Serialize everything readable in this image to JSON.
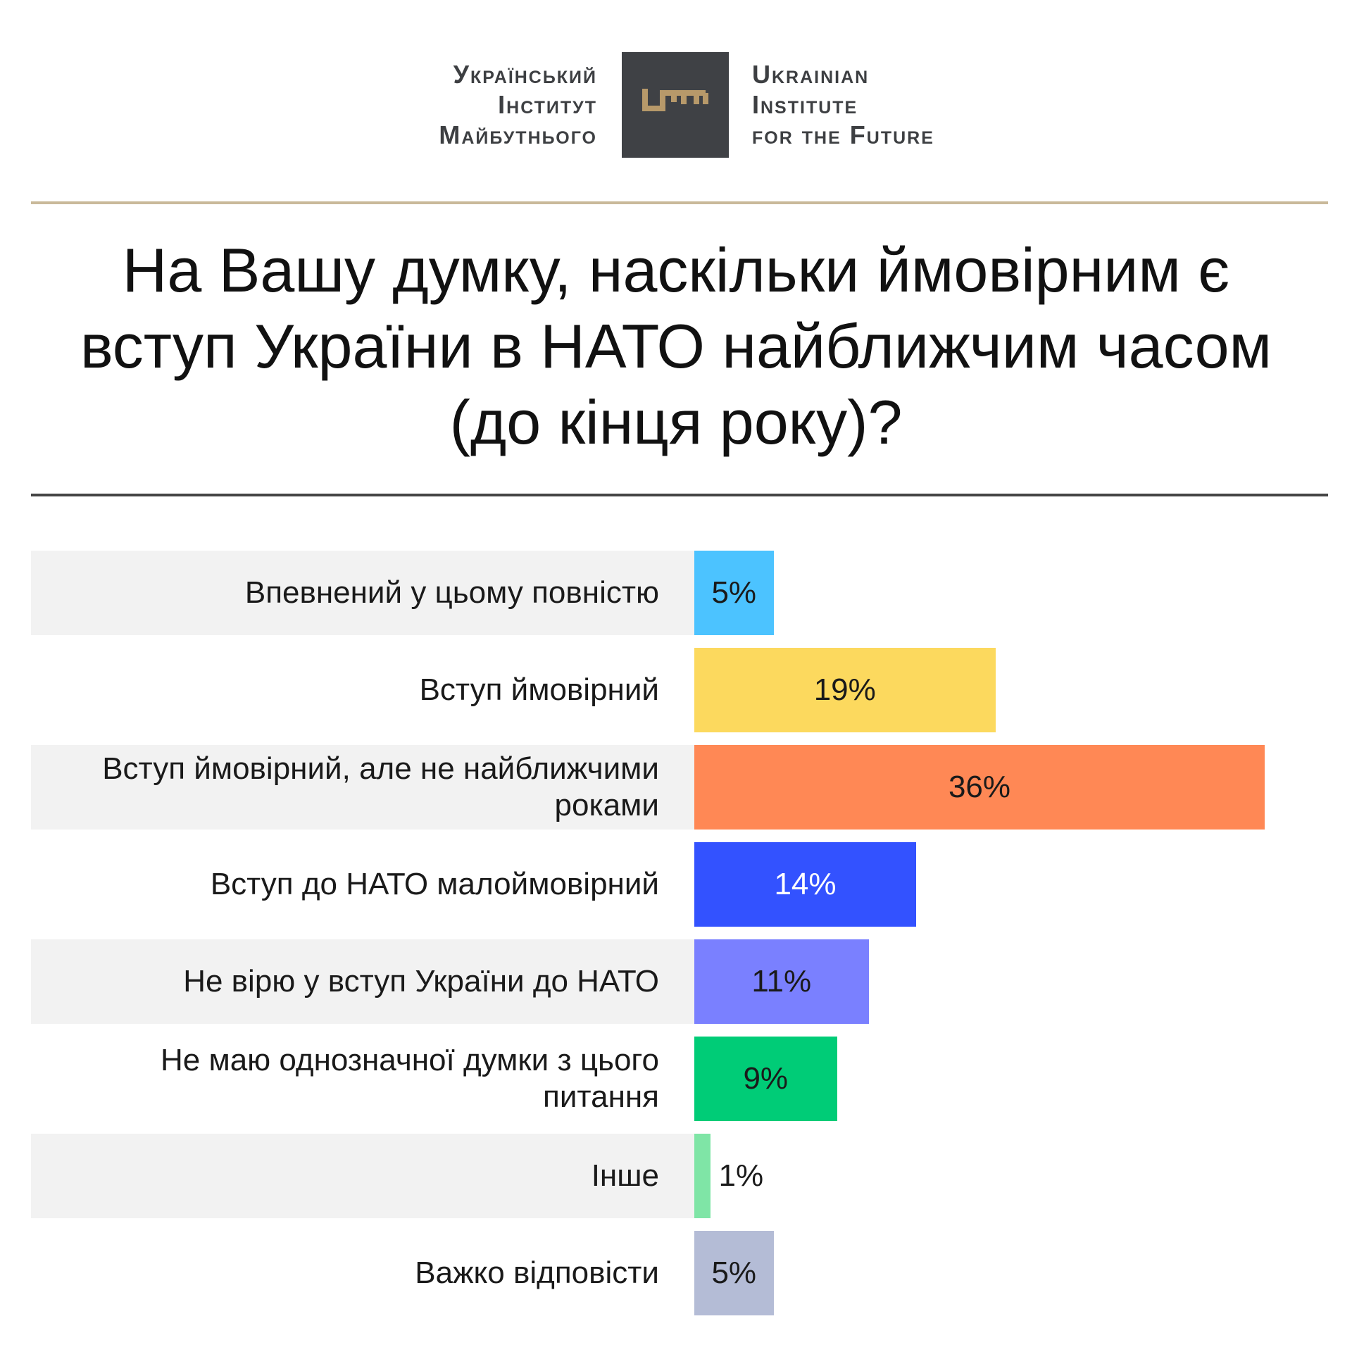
{
  "header": {
    "brand_ua": [
      "Український",
      "Інститут",
      "Майбутнього"
    ],
    "brand_en": [
      "Ukrainian",
      "Institute",
      "for the Future"
    ]
  },
  "colors": {
    "logo_box": "#3f4145",
    "logo_key": "#b7996a",
    "rule_top": "#c9b99a",
    "rule_mid": "#444444",
    "row_band": "#f2f2f2"
  },
  "chart_data": {
    "type": "bar",
    "orientation": "horizontal",
    "title": "На Вашу думку, наскільки ймовірним є вступ України в НАТО найближчим часом (до кінця року)?",
    "categories": [
      "Впевнений у цьому повністю",
      "Вступ ймовірний",
      "Вступ ймовірний, але не найближчими роками",
      "Вступ до НАТО малоймовірний",
      "Не вірю у вступ України до НАТО",
      "Не маю однозначної думки з цього питання",
      "Інше",
      "Важко відповісти"
    ],
    "values": [
      5,
      19,
      36,
      14,
      11,
      9,
      1,
      5
    ],
    "value_labels": [
      "5%",
      "19%",
      "36%",
      "14%",
      "11%",
      "9%",
      "1%",
      "5%"
    ],
    "bar_colors": [
      "#4cc3ff",
      "#fcd95e",
      "#ff8855",
      "#3352ff",
      "#7a80ff",
      "#00cc77",
      "#7fe5a6",
      "#b4bcd6"
    ],
    "label_colors": [
      "#1a1a1a",
      "#1a1a1a",
      "#1a1a1a",
      "#ffffff",
      "#1a1a1a",
      "#1a1a1a",
      "#1a1a1a",
      "#1a1a1a"
    ],
    "banded_rows": [
      true,
      false,
      true,
      false,
      true,
      false,
      true,
      false
    ],
    "xlim": [
      0,
      36
    ],
    "xlabel": "",
    "ylabel": "",
    "grid": false,
    "legend": "none"
  }
}
